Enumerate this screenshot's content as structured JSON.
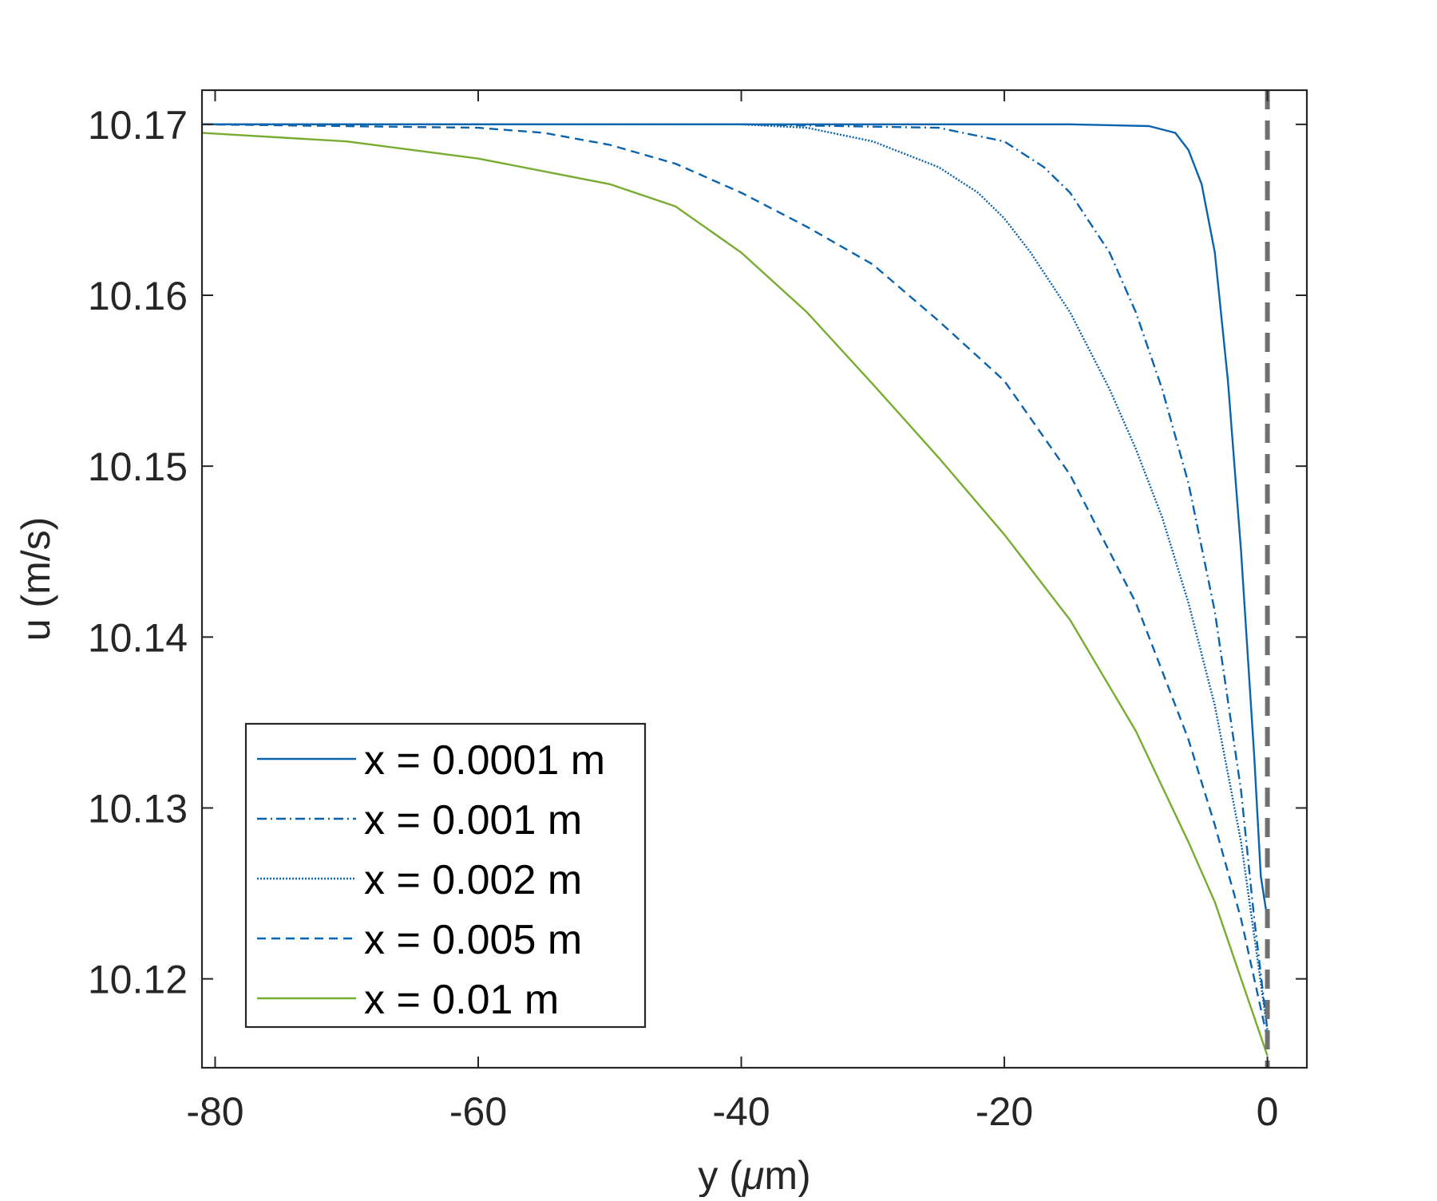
{
  "chart_data": {
    "type": "line",
    "title": "",
    "xlabel": "y (",
    "xlabel_mu": "μ",
    "xlabel_tail": "m)",
    "ylabel": "u (m/s)",
    "xlim": [
      -81,
      3
    ],
    "ylim": [
      10.1148,
      10.172
    ],
    "xticks": [
      -80,
      -60,
      -40,
      -20,
      0
    ],
    "xtick_labels": [
      "-80",
      "-60",
      "-40",
      "-20",
      "0"
    ],
    "yticks": [
      10.12,
      10.13,
      10.14,
      10.15,
      10.16,
      10.17
    ],
    "ytick_labels": [
      "10.12",
      "10.13",
      "10.14",
      "10.15",
      "10.16",
      "10.17"
    ],
    "grid": false,
    "legend_position": "lower-left",
    "wall_line": {
      "x": 0,
      "color": "#707070",
      "style": "dashed"
    },
    "series": [
      {
        "name": "x = 0.0001 m",
        "color": "#0a63ad",
        "dash": "solid",
        "points": [
          [
            -81,
            10.17
          ],
          [
            -40,
            10.17
          ],
          [
            -15,
            10.17
          ],
          [
            -9,
            10.1699
          ],
          [
            -7,
            10.1695
          ],
          [
            -6,
            10.1685
          ],
          [
            -5,
            10.1665
          ],
          [
            -4,
            10.1625
          ],
          [
            -3,
            10.155
          ],
          [
            -2,
            10.145
          ],
          [
            -1,
            10.133
          ],
          [
            -0.5,
            10.126
          ],
          [
            0,
            10.1235
          ]
        ]
      },
      {
        "name": "x = 0.001 m",
        "color": "#0a63ad",
        "dash": "dashdot",
        "points": [
          [
            -81,
            10.17
          ],
          [
            -40,
            10.17
          ],
          [
            -25,
            10.1698
          ],
          [
            -20,
            10.169
          ],
          [
            -17,
            10.1675
          ],
          [
            -15,
            10.166
          ],
          [
            -12,
            10.1625
          ],
          [
            -10,
            10.159
          ],
          [
            -8,
            10.1545
          ],
          [
            -6,
            10.149
          ],
          [
            -4,
            10.1415
          ],
          [
            -2,
            10.131
          ],
          [
            -1,
            10.1235
          ],
          [
            0,
            10.117
          ]
        ]
      },
      {
        "name": "x = 0.002 m",
        "color": "#0a63ad",
        "dash": "dotted",
        "points": [
          [
            -81,
            10.17
          ],
          [
            -40,
            10.17
          ],
          [
            -35,
            10.1698
          ],
          [
            -30,
            10.169
          ],
          [
            -25,
            10.1675
          ],
          [
            -22,
            10.166
          ],
          [
            -20,
            10.1645
          ],
          [
            -18,
            10.1625
          ],
          [
            -15,
            10.159
          ],
          [
            -12,
            10.1545
          ],
          [
            -10,
            10.151
          ],
          [
            -8,
            10.147
          ],
          [
            -6,
            10.142
          ],
          [
            -4,
            10.136
          ],
          [
            -2,
            10.128
          ],
          [
            -1,
            10.1225
          ],
          [
            0,
            10.117
          ]
        ]
      },
      {
        "name": "x = 0.005 m",
        "color": "#0a63ad",
        "dash": "dashed",
        "points": [
          [
            -81,
            10.17
          ],
          [
            -60,
            10.1698
          ],
          [
            -55,
            10.1695
          ],
          [
            -50,
            10.1688
          ],
          [
            -45,
            10.1677
          ],
          [
            -40,
            10.166
          ],
          [
            -35,
            10.164
          ],
          [
            -30,
            10.1618
          ],
          [
            -25,
            10.1585
          ],
          [
            -20,
            10.155
          ],
          [
            -15,
            10.1495
          ],
          [
            -10,
            10.142
          ],
          [
            -8,
            10.138
          ],
          [
            -6,
            10.134
          ],
          [
            -4,
            10.129
          ],
          [
            -2,
            10.1235
          ],
          [
            0,
            10.1165
          ]
        ]
      },
      {
        "name": "x = 0.01 m",
        "color": "#77ac30",
        "dash": "solid",
        "points": [
          [
            -81,
            10.1695
          ],
          [
            -70,
            10.169
          ],
          [
            -60,
            10.168
          ],
          [
            -50,
            10.1665
          ],
          [
            -45,
            10.1652
          ],
          [
            -40,
            10.1625
          ],
          [
            -35,
            10.159
          ],
          [
            -30,
            10.1548
          ],
          [
            -25,
            10.1505
          ],
          [
            -20,
            10.146
          ],
          [
            -15,
            10.141
          ],
          [
            -10,
            10.1345
          ],
          [
            -6,
            10.128
          ],
          [
            -4,
            10.1245
          ],
          [
            -2,
            10.12
          ],
          [
            0,
            10.1155
          ]
        ]
      }
    ]
  }
}
